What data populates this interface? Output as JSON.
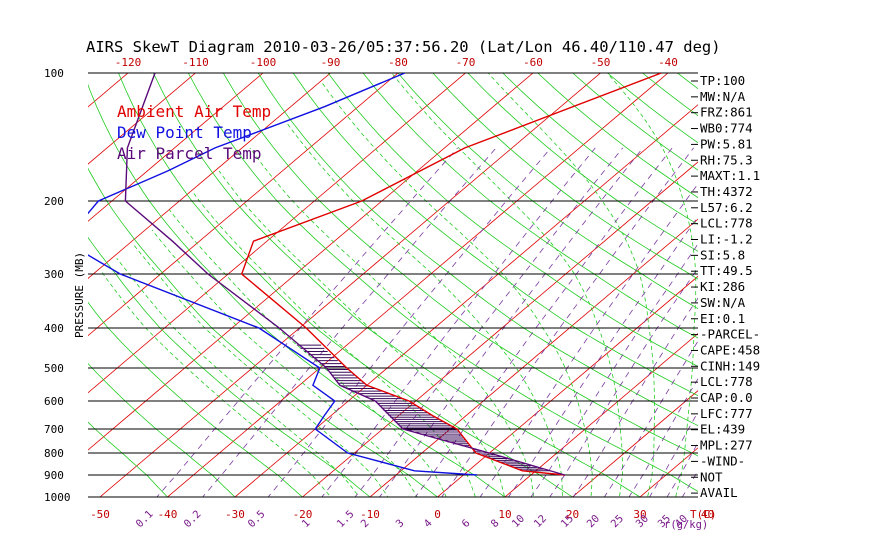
{
  "colors": {
    "ambient": "#e00000",
    "dewpoint": "#1010e0",
    "parcel": "#5a0a7a",
    "isotherm": "#e00000",
    "dry_adiabat": "#22cc22",
    "moist_adiabat": "#22cc22",
    "mixing_ratio": "#7a3aa0",
    "pressure_line": "#000000",
    "cape_hatch": "#3a0a5a"
  },
  "chart_data": {
    "type": "skewt",
    "title": "AIRS SkewT Diagram 2010-03-26/05:37:56.20 (Lat/Lon 46.40/110.47 deg)",
    "ylabel": "PRESSURE (MB)",
    "xlabel": "T(C)",
    "mixing_ratio_unit": "r(g/kg)",
    "pressure_range_mb": [
      100,
      1000
    ],
    "pressure_ticks": [
      100,
      200,
      300,
      400,
      500,
      600,
      700,
      800,
      900,
      1000
    ],
    "top_temperature_ticks": [
      -120,
      -110,
      -100,
      -90,
      -80,
      -70,
      -60,
      -50,
      -40
    ],
    "bottom_temperature_ticks": [
      -50,
      -40,
      -30,
      -20,
      -10,
      0,
      10,
      20,
      30,
      40
    ],
    "mixing_ratio_labels": [
      "0.1",
      "0.2",
      "0.5",
      "1",
      "1.5",
      "2",
      "3",
      "4",
      "6",
      "8",
      "10",
      "12",
      "15",
      "20",
      "25",
      "30",
      "35",
      "40"
    ],
    "legend": [
      {
        "label": "Ambient Air Temp",
        "color": "#e00000"
      },
      {
        "label": "Dew Point Temp",
        "color": "#1010e0"
      },
      {
        "label": "Air Parcel Temp",
        "color": "#5a0a7a"
      }
    ],
    "series": [
      {
        "name": "Ambient Air Temp",
        "points": [
          [
            100,
            -41
          ],
          [
            150,
            -57
          ],
          [
            200,
            -63
          ],
          [
            250,
            -72
          ],
          [
            300,
            -68
          ],
          [
            400,
            -49
          ],
          [
            500,
            -36
          ],
          [
            550,
            -30
          ],
          [
            600,
            -21
          ],
          [
            650,
            -15
          ],
          [
            700,
            -9
          ],
          [
            800,
            -2
          ],
          [
            880,
            8
          ],
          [
            900,
            15
          ]
        ]
      },
      {
        "name": "Dew Point Temp",
        "points": [
          [
            100,
            -79
          ],
          [
            120,
            -85
          ],
          [
            150,
            -94
          ],
          [
            170,
            -97
          ],
          [
            200,
            -102
          ],
          [
            250,
            -100
          ],
          [
            300,
            -86
          ],
          [
            400,
            -56
          ],
          [
            500,
            -40
          ],
          [
            550,
            -38
          ],
          [
            600,
            -32
          ],
          [
            650,
            -31
          ],
          [
            700,
            -30
          ],
          [
            800,
            -21
          ],
          [
            880,
            -8
          ],
          [
            900,
            2
          ]
        ]
      },
      {
        "name": "Air Parcel Temp",
        "points": [
          [
            100,
            -116
          ],
          [
            150,
            -107
          ],
          [
            200,
            -98
          ],
          [
            250,
            -84
          ],
          [
            300,
            -73
          ],
          [
            400,
            -53
          ],
          [
            500,
            -39
          ],
          [
            550,
            -34
          ],
          [
            600,
            -26
          ],
          [
            700,
            -17
          ],
          [
            800,
            0
          ],
          [
            900,
            15
          ]
        ]
      }
    ]
  },
  "indices": [
    "TP:100",
    "MW:N/A",
    "FRZ:861",
    "WB0:774",
    "PW:5.81",
    "RH:75.3",
    "MAXT:1.1",
    "TH:4372",
    "L57:6.2",
    "LCL:778",
    "LI:-1.2",
    "SI:5.8",
    "TT:49.5",
    "KI:286",
    "SW:N/A",
    "EI:0.1",
    "-PARCEL-",
    "CAPE:458",
    "CINH:149",
    "LCL:778",
    "CAP:0.0",
    "LFC:777",
    "EL:439",
    "MPL:277",
    "-WIND-",
    "NOT",
    "AVAIL"
  ]
}
